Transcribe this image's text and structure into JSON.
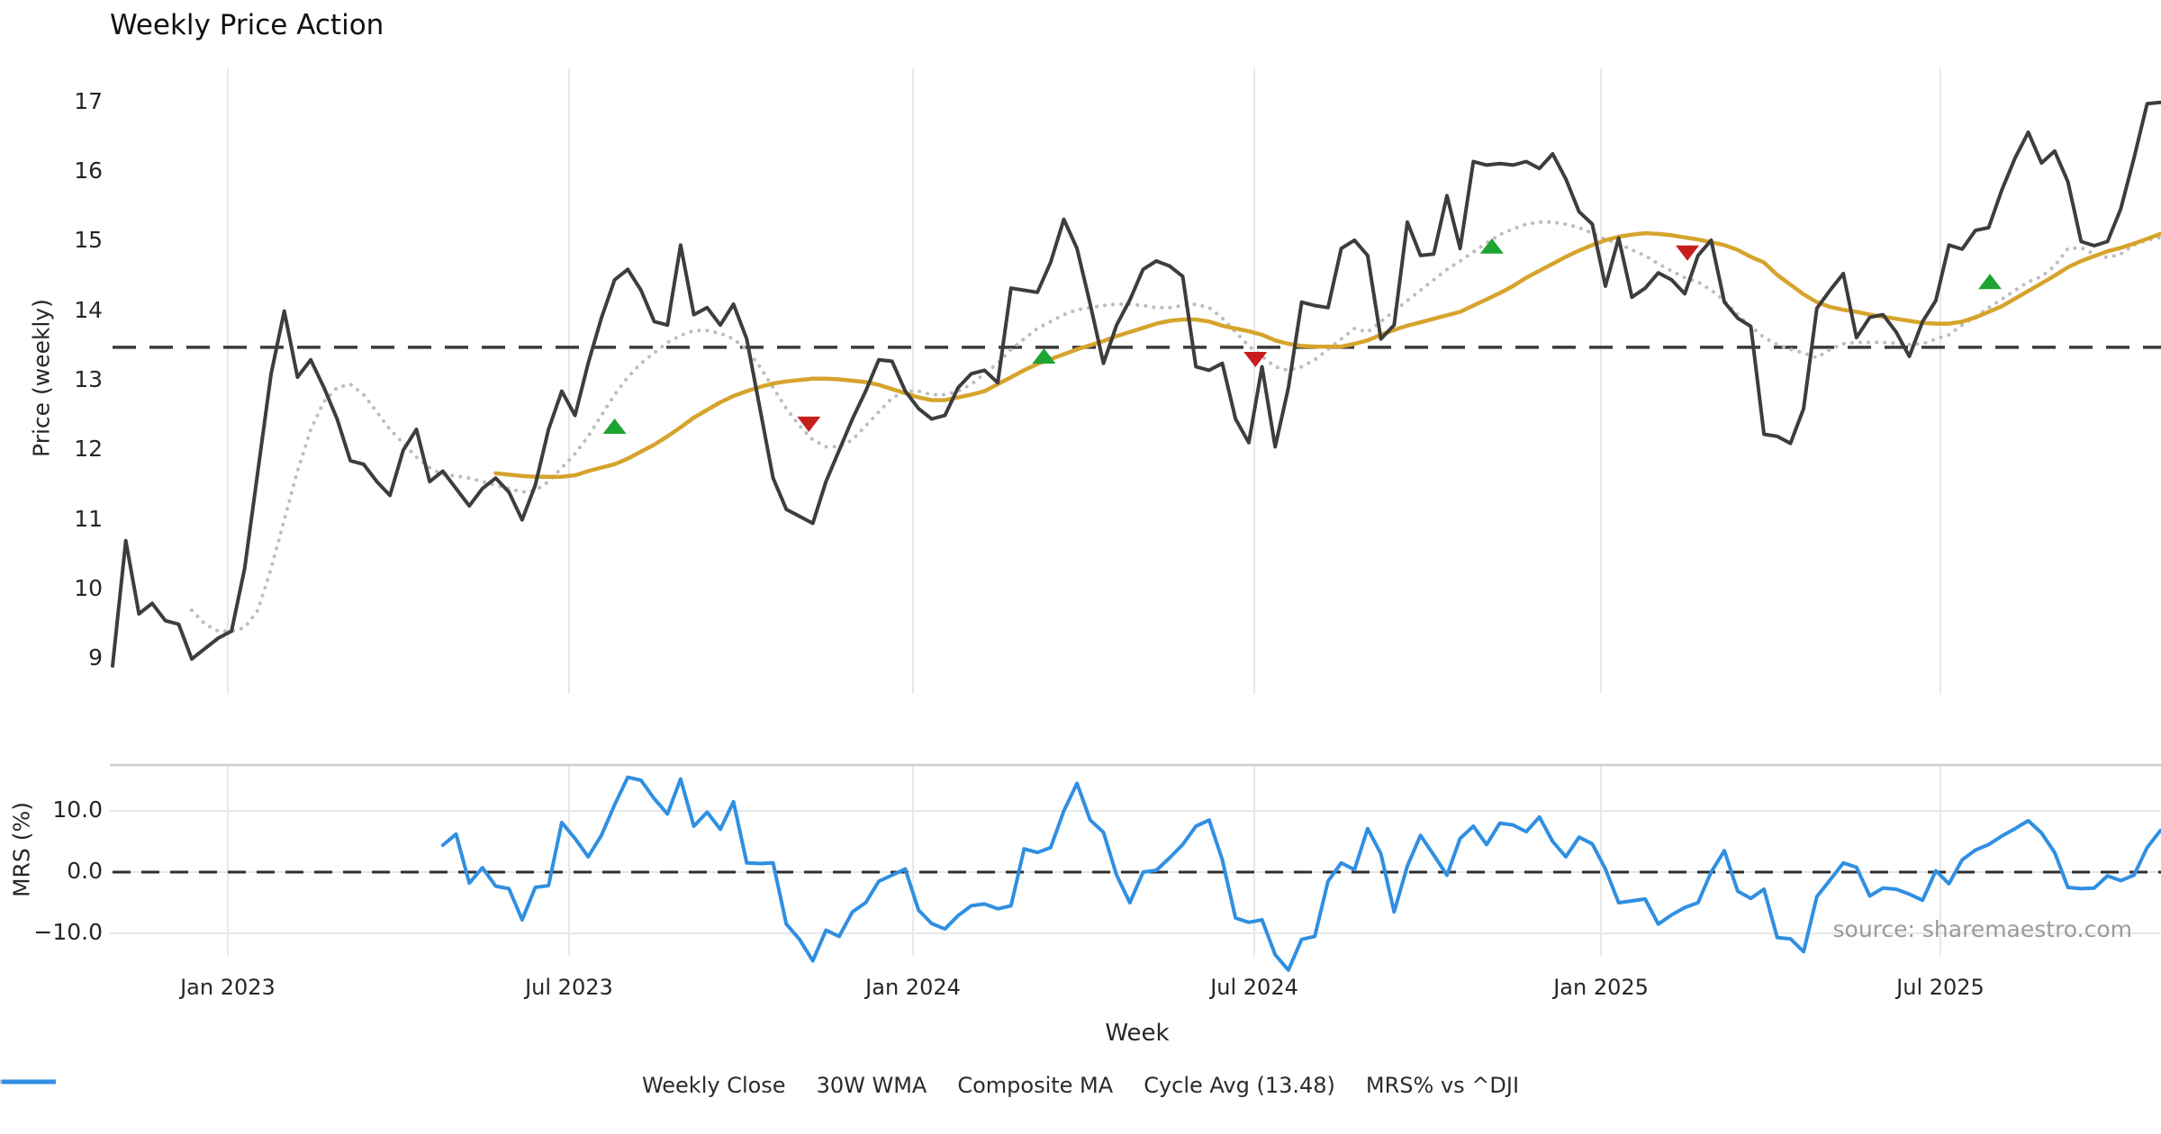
{
  "chart_data": {
    "type": "line",
    "title": "Weekly Price Action",
    "xlabel": "Week",
    "source": "source: sharemaestro.com",
    "x_axis": {
      "ticks": [
        {
          "label": "Jan 2023",
          "week": 8.72
        },
        {
          "label": "Jul 2023",
          "week": 34.55
        },
        {
          "label": "Jan 2024",
          "week": 60.59
        },
        {
          "label": "Jul 2024",
          "week": 86.42
        },
        {
          "label": "Jan 2025",
          "week": 112.66
        },
        {
          "label": "Jul 2025",
          "week": 138.35
        }
      ]
    },
    "price_panel": {
      "ylabel": "Price (weekly)",
      "yticks": [
        9,
        10,
        11,
        12,
        13,
        14,
        15,
        16,
        17
      ],
      "ylim": [
        8.5,
        17.55
      ],
      "cycle_avg": 13.48,
      "series": {
        "weekly_close": {
          "name": "Weekly Close",
          "start_week": 0,
          "values": [
            8.9,
            10.7,
            9.65,
            9.8,
            9.55,
            9.5,
            9.0,
            9.15,
            9.3,
            9.4,
            10.3,
            11.7,
            13.1,
            14.0,
            13.05,
            13.3,
            12.9,
            12.45,
            11.85,
            11.8,
            11.55,
            11.35,
            12.0,
            12.3,
            11.55,
            11.7,
            11.45,
            11.2,
            11.45,
            11.6,
            11.4,
            11.0,
            11.5,
            12.3,
            12.85,
            12.5,
            13.25,
            13.9,
            14.45,
            14.6,
            14.3,
            13.85,
            13.8,
            14.95,
            13.95,
            14.05,
            13.8,
            14.1,
            13.6,
            12.6,
            11.6,
            11.15,
            11.05,
            10.95,
            11.55,
            12.0,
            12.45,
            12.85,
            13.3,
            13.28,
            12.85,
            12.6,
            12.45,
            12.5,
            12.9,
            13.1,
            13.15,
            12.97,
            14.33,
            14.3,
            14.27,
            14.7,
            15.32,
            14.9,
            14.1,
            13.25,
            13.8,
            14.16,
            14.6,
            14.72,
            14.65,
            14.5,
            13.2,
            13.15,
            13.25,
            12.45,
            12.11,
            13.2,
            12.05,
            12.9,
            14.13,
            14.08,
            14.05,
            14.9,
            15.02,
            14.8,
            13.6,
            13.8,
            15.28,
            14.8,
            14.82,
            15.66,
            14.9,
            16.15,
            16.1,
            16.12,
            16.1,
            16.15,
            16.05,
            16.26,
            15.9,
            15.43,
            15.25,
            14.36,
            15.05,
            14.2,
            14.33,
            14.55,
            14.45,
            14.25,
            14.8,
            15.02,
            14.13,
            13.9,
            13.78,
            12.23,
            12.2,
            12.1,
            12.6,
            14.04,
            14.3,
            14.54,
            13.62,
            13.91,
            13.95,
            13.7,
            13.35,
            13.85,
            14.15,
            14.95,
            14.89,
            15.16,
            15.2,
            15.74,
            16.2,
            16.57,
            16.13,
            16.3,
            15.86,
            15.0,
            14.94,
            15.0,
            15.47,
            16.2,
            16.98,
            17.0
          ]
        },
        "wma_30w": {
          "name": "30W WMA",
          "start_week": 29,
          "values": [
            11.67,
            11.65,
            11.63,
            11.62,
            11.62,
            11.62,
            11.64,
            11.7,
            11.75,
            11.8,
            11.88,
            11.98,
            12.08,
            12.2,
            12.33,
            12.47,
            12.58,
            12.69,
            12.78,
            12.85,
            12.91,
            12.96,
            12.99,
            13.01,
            13.03,
            13.03,
            13.02,
            13.0,
            12.98,
            12.94,
            12.88,
            12.82,
            12.76,
            12.72,
            12.72,
            12.76,
            12.8,
            12.85,
            12.95,
            13.05,
            13.15,
            13.24,
            13.31,
            13.38,
            13.45,
            13.51,
            13.57,
            13.64,
            13.7,
            13.76,
            13.82,
            13.86,
            13.88,
            13.88,
            13.85,
            13.79,
            13.75,
            13.71,
            13.66,
            13.58,
            13.53,
            13.5,
            13.49,
            13.49,
            13.49,
            13.53,
            13.58,
            13.66,
            13.73,
            13.79,
            13.84,
            13.89,
            13.94,
            13.99,
            14.08,
            14.17,
            14.26,
            14.36,
            14.48,
            14.58,
            14.68,
            14.78,
            14.87,
            14.95,
            15.02,
            15.07,
            15.1,
            15.12,
            15.11,
            15.09,
            15.06,
            15.03,
            14.99,
            14.95,
            14.88,
            14.78,
            14.7,
            14.52,
            14.38,
            14.24,
            14.13,
            14.06,
            14.02,
            13.99,
            13.95,
            13.92,
            13.89,
            13.86,
            13.83,
            13.82,
            13.82,
            13.85,
            13.91,
            13.99,
            14.07,
            14.18,
            14.29,
            14.4,
            14.51,
            14.63,
            14.72,
            14.79,
            14.86,
            14.91,
            14.97,
            15.04,
            15.11
          ]
        },
        "composite_ma": {
          "name": "Composite MA",
          "start_week": 6,
          "values": [
            9.7,
            9.5,
            9.4,
            9.4,
            9.45,
            9.7,
            10.3,
            11.0,
            11.7,
            12.3,
            12.7,
            12.9,
            12.95,
            12.8,
            12.55,
            12.3,
            12.1,
            11.9,
            11.75,
            11.65,
            11.63,
            11.6,
            11.55,
            11.5,
            11.45,
            11.4,
            11.42,
            11.55,
            11.75,
            11.95,
            12.2,
            12.5,
            12.8,
            13.05,
            13.25,
            13.4,
            13.55,
            13.65,
            13.72,
            13.72,
            13.68,
            13.6,
            13.45,
            13.2,
            12.9,
            12.6,
            12.35,
            12.15,
            12.05,
            12.05,
            12.15,
            12.35,
            12.55,
            12.75,
            12.85,
            12.85,
            12.8,
            12.8,
            12.85,
            12.95,
            13.1,
            13.25,
            13.45,
            13.6,
            13.75,
            13.85,
            13.95,
            14.02,
            14.05,
            14.08,
            14.1,
            14.1,
            14.08,
            14.05,
            14.05,
            14.08,
            14.1,
            14.05,
            13.9,
            13.7,
            13.5,
            13.35,
            13.2,
            13.15,
            13.2,
            13.3,
            13.45,
            13.6,
            13.75,
            13.7,
            13.85,
            14.0,
            14.15,
            14.3,
            14.45,
            14.6,
            14.72,
            14.85,
            14.98,
            15.1,
            15.18,
            15.25,
            15.28,
            15.28,
            15.25,
            15.2,
            15.12,
            15.03,
            14.97,
            14.88,
            14.8,
            14.68,
            14.58,
            14.48,
            14.42,
            14.3,
            14.15,
            13.95,
            13.78,
            13.62,
            13.52,
            13.45,
            13.4,
            13.33,
            13.45,
            13.53,
            13.55,
            13.55,
            13.55,
            13.54,
            13.52,
            13.53,
            13.6,
            13.66,
            13.8,
            13.92,
            14.05,
            14.17,
            14.3,
            14.42,
            14.5,
            14.65,
            14.9,
            14.91,
            14.82,
            14.77,
            14.82,
            14.95,
            15.02,
            15.06
          ]
        }
      },
      "buy_markers": [
        {
          "week": 38.0,
          "price": 12.34
        },
        {
          "week": 70.5,
          "price": 13.35
        },
        {
          "week": 104.4,
          "price": 14.93
        },
        {
          "week": 142.1,
          "price": 14.42
        }
      ],
      "sell_markers": [
        {
          "week": 52.7,
          "price": 12.38
        },
        {
          "week": 86.5,
          "price": 13.31
        },
        {
          "week": 119.2,
          "price": 14.84
        }
      ]
    },
    "mrs_panel": {
      "ylabel": "MRS (%)",
      "yticks": [
        {
          "value": 10,
          "label": "10.0"
        },
        {
          "value": 0,
          "label": "0.0"
        },
        {
          "value": -10,
          "label": "−10.0"
        }
      ],
      "zero_line": 0,
      "series": {
        "mrs": {
          "name": "MRS% vs ^DJI",
          "start_week": 25,
          "values": [
            4.4,
            6.2,
            -1.8,
            0.7,
            -2.3,
            -2.7,
            -7.8,
            -2.5,
            -2.2,
            8.1,
            5.5,
            2.5,
            6.0,
            11.0,
            15.5,
            15.0,
            12.0,
            9.5,
            15.2,
            7.5,
            9.8,
            7.0,
            11.5,
            1.5,
            1.4,
            1.5,
            -8.5,
            -11.0,
            -14.5,
            -9.5,
            -10.5,
            -6.5,
            -5.0,
            -1.5,
            -0.5,
            0.5,
            -6.2,
            -8.4,
            -9.3,
            -7.1,
            -5.5,
            -5.2,
            -6.0,
            -5.5,
            3.8,
            3.2,
            4.0,
            10.0,
            14.5,
            8.5,
            6.5,
            -0.5,
            -5.0,
            0.0,
            0.3,
            2.3,
            4.5,
            7.5,
            8.5,
            2.0,
            -7.5,
            -8.2,
            -7.8,
            -13.5,
            -16.0,
            -11.0,
            -10.5,
            -1.5,
            1.5,
            0.4,
            7.1,
            3.0,
            -6.5,
            1.0,
            6.0,
            2.8,
            -0.5,
            5.5,
            7.5,
            4.5,
            8.0,
            7.7,
            6.6,
            9.0,
            5.0,
            2.5,
            5.7,
            4.6,
            0.5,
            -5.0,
            -4.7,
            -4.4,
            -8.5,
            -7.0,
            -5.8,
            -5.0,
            0.0,
            3.5,
            -3.1,
            -4.3,
            -2.8,
            -10.7,
            -10.9,
            -13.0,
            -4.0,
            -1.3,
            1.5,
            0.8,
            -3.9,
            -2.6,
            -2.8,
            -3.6,
            -4.6,
            0.2,
            -1.9,
            2.0,
            3.6,
            4.5,
            5.9,
            7.1,
            8.4,
            6.4,
            3.2,
            -2.5,
            -2.7,
            -2.6,
            -0.6,
            -1.4,
            -0.5,
            4.0,
            6.8
          ]
        }
      }
    },
    "legend": [
      {
        "label": "Weekly Close",
        "style": "solid",
        "color": "#3d3d3d"
      },
      {
        "label": "30W WMA",
        "style": "solid",
        "color": "#d6a42c"
      },
      {
        "label": "Composite MA",
        "style": "dotted",
        "color": "#bdbdbd"
      },
      {
        "label": "Cycle Avg (13.48)",
        "style": "dashed",
        "color": "#3a3a3a"
      },
      {
        "label": "MRS% vs ^DJI",
        "style": "solid",
        "color": "#2f8fe2"
      }
    ],
    "colors": {
      "weekly_close": "#3d3d3d",
      "wma_30w": "#d6a42c",
      "composite_ma": "#bdbdbd",
      "cycle_avg": "#3a3a3a",
      "mrs": "#2f8fe2",
      "buy_marker": "#1da432",
      "sell_marker": "#c81d1d",
      "grid": "#e7e7e7",
      "spine": "#cccccc"
    }
  }
}
